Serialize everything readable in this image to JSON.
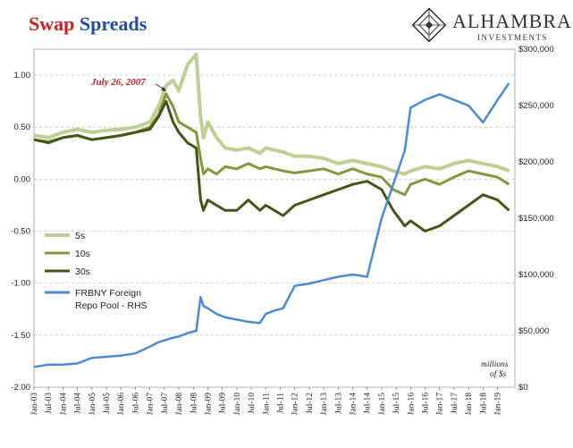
{
  "title_part1": "Swap",
  "title_part2": "Spreads",
  "brand": {
    "name": "ALHAMBRA",
    "sub": "INVESTMENTS"
  },
  "chart_data": {
    "type": "line",
    "title": "Swap Spreads",
    "annotation": "July 26, 2007",
    "units_note_line1": "millions",
    "units_note_line2": "of $s",
    "left_axis": {
      "ylim": [
        -2.0,
        1.25
      ],
      "ticks": [
        "1.00",
        "0.50",
        "0.00",
        "-0.50",
        "-1.00",
        "-1.50",
        "-2.00"
      ]
    },
    "right_axis": {
      "ylim": [
        0,
        300000
      ],
      "ticks": [
        "$300,000",
        "$250,000",
        "$200,000",
        "$150,000",
        "$100,000",
        "$50,000",
        "$0"
      ]
    },
    "x_ticks": [
      "Jan-03",
      "Jul-03",
      "Jan-04",
      "Jul-04",
      "Jan-05",
      "Jul-05",
      "Jan-06",
      "Jul-06",
      "Jan-07",
      "Jul-07",
      "Jan-08",
      "Jul-08",
      "Jan-09",
      "Jul-09",
      "Jan-10",
      "Jul-10",
      "Jan-11",
      "Jul-11",
      "Jan-12",
      "Jul-12",
      "Jan-13",
      "Jul-13",
      "Jan-14",
      "Jul-14",
      "Jan-15",
      "Jul-15",
      "Jan-16",
      "Jul-16",
      "Jan-17",
      "Jul-17",
      "Jan-18",
      "Jul-18",
      "Jan-19"
    ],
    "x": [
      2003.0,
      2003.5,
      2004.0,
      2004.5,
      2005.0,
      2005.5,
      2006.0,
      2006.5,
      2007.0,
      2007.3,
      2007.56,
      2007.8,
      2008.0,
      2008.3,
      2008.6,
      2008.75,
      2008.85,
      2009.0,
      2009.3,
      2009.6,
      2010.0,
      2010.4,
      2010.8,
      2011.0,
      2011.3,
      2011.6,
      2012.0,
      2012.5,
      2013.0,
      2013.5,
      2014.0,
      2014.5,
      2015.0,
      2015.4,
      2015.8,
      2016.0,
      2016.5,
      2017.0,
      2017.5,
      2018.0,
      2018.5,
      2019.0,
      2019.4
    ],
    "series": [
      {
        "name": "5s",
        "axis": "left",
        "color": "#bcd094",
        "width": 4,
        "values": [
          0.42,
          0.4,
          0.45,
          0.48,
          0.45,
          0.47,
          0.48,
          0.5,
          0.55,
          0.7,
          0.9,
          0.95,
          0.85,
          1.1,
          1.2,
          0.6,
          0.4,
          0.55,
          0.4,
          0.3,
          0.28,
          0.3,
          0.25,
          0.3,
          0.28,
          0.26,
          0.22,
          0.22,
          0.2,
          0.15,
          0.18,
          0.15,
          0.12,
          0.08,
          0.05,
          0.08,
          0.12,
          0.1,
          0.15,
          0.18,
          0.15,
          0.12,
          0.08
        ]
      },
      {
        "name": "10s",
        "axis": "left",
        "color": "#7e9a3a",
        "width": 3,
        "values": [
          0.38,
          0.36,
          0.4,
          0.42,
          0.38,
          0.4,
          0.42,
          0.45,
          0.5,
          0.62,
          0.82,
          0.7,
          0.55,
          0.5,
          0.45,
          0.2,
          0.05,
          0.1,
          0.05,
          0.12,
          0.1,
          0.15,
          0.1,
          0.12,
          0.1,
          0.08,
          0.06,
          0.08,
          0.1,
          0.05,
          0.1,
          0.05,
          0.02,
          -0.1,
          -0.15,
          -0.05,
          0.0,
          -0.05,
          0.02,
          0.08,
          0.05,
          0.02,
          -0.05
        ]
      },
      {
        "name": "30s",
        "axis": "left",
        "color": "#435617",
        "width": 3,
        "values": [
          0.38,
          0.35,
          0.4,
          0.42,
          0.38,
          0.4,
          0.42,
          0.45,
          0.48,
          0.6,
          0.75,
          0.55,
          0.45,
          0.35,
          0.3,
          -0.2,
          -0.3,
          -0.2,
          -0.25,
          -0.3,
          -0.3,
          -0.2,
          -0.3,
          -0.25,
          -0.3,
          -0.35,
          -0.25,
          -0.2,
          -0.15,
          -0.1,
          -0.05,
          -0.02,
          -0.1,
          -0.3,
          -0.45,
          -0.4,
          -0.5,
          -0.45,
          -0.35,
          -0.25,
          -0.15,
          -0.2,
          -0.3
        ]
      },
      {
        "name": "FRBNY Foreign Repo Pool - RHS",
        "axis": "right",
        "color": "#4a8bd4",
        "width": 2.5,
        "values": [
          18000,
          20000,
          20000,
          21000,
          26000,
          27000,
          28000,
          30000,
          36000,
          40000,
          42000,
          44000,
          45000,
          48000,
          50000,
          80000,
          72000,
          70000,
          65000,
          62000,
          60000,
          58000,
          57000,
          65000,
          68000,
          70000,
          90000,
          92000,
          95000,
          98000,
          100000,
          98000,
          150000,
          180000,
          210000,
          248000,
          255000,
          260000,
          255000,
          250000,
          235000,
          255000,
          270000
        ]
      }
    ],
    "legend": [
      "5s",
      "10s",
      "30s",
      "FRBNY Foreign",
      "Repo Pool - RHS"
    ]
  }
}
